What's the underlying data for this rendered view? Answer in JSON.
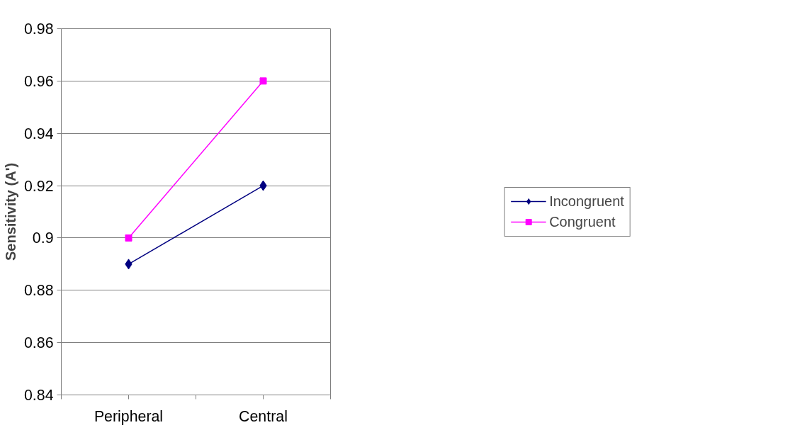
{
  "chart_data": {
    "type": "line",
    "ylabel": "Sensitivity (A')",
    "categories": [
      "Peripheral",
      "Central"
    ],
    "series": [
      {
        "name": "Incongruent",
        "color": "#000080",
        "values": [
          0.89,
          0.92
        ],
        "marker": "diamond"
      },
      {
        "name": "Congruent",
        "color": "#ff00ff",
        "values": [
          0.9,
          0.96
        ],
        "marker": "square"
      }
    ],
    "ylim": [
      0.84,
      0.98
    ],
    "yticks": [
      0.84,
      0.86,
      0.88,
      0.9,
      0.92,
      0.94,
      0.96,
      0.98
    ],
    "grid": "y",
    "legend": "right",
    "line_style": "solid"
  }
}
